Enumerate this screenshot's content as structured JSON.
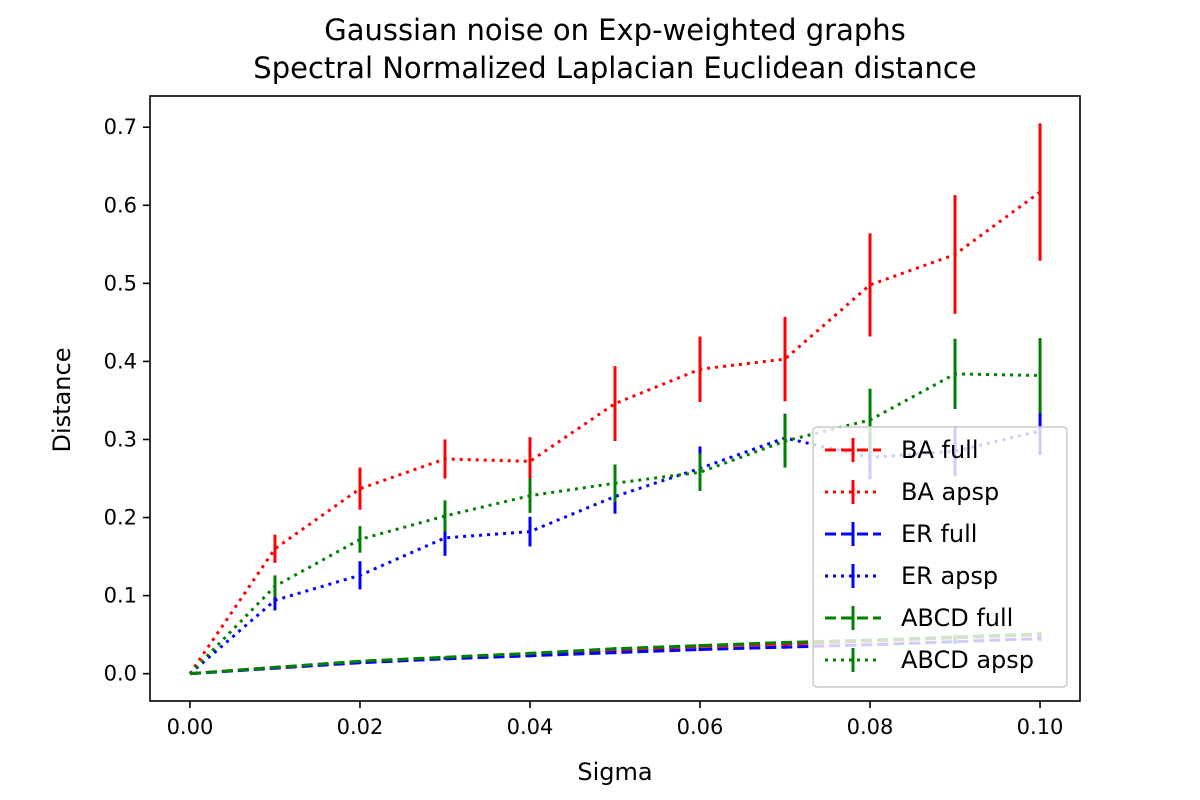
{
  "chart_data": {
    "type": "line",
    "title": "Gaussian noise on Exp-weighted graphs",
    "subtitle": "Spectral Normalized Laplacian Euclidean distance",
    "xlabel": "Sigma",
    "ylabel": "Distance",
    "xlim": [
      -0.0047,
      0.1047
    ],
    "ylim": [
      -0.035,
      0.74
    ],
    "xticks": [
      0.0,
      0.02,
      0.04,
      0.06,
      0.08,
      0.1
    ],
    "xtick_labels": [
      "0.00",
      "0.02",
      "0.04",
      "0.06",
      "0.08",
      "0.10"
    ],
    "yticks": [
      0.0,
      0.1,
      0.2,
      0.3,
      0.4,
      0.5,
      0.6,
      0.7
    ],
    "ytick_labels": [
      "0.0",
      "0.1",
      "0.2",
      "0.3",
      "0.4",
      "0.5",
      "0.6",
      "0.7"
    ],
    "grid": false,
    "legend_position": "lower-right",
    "x": [
      0.0,
      0.01,
      0.02,
      0.03,
      0.04,
      0.05,
      0.06,
      0.07,
      0.08,
      0.09,
      0.1
    ],
    "series": [
      {
        "name": "BA full",
        "color": "#ff0000",
        "linestyle": "dashed",
        "values": [
          0.0,
          0.008,
          0.015,
          0.02,
          0.025,
          0.03,
          0.035,
          0.038,
          0.042,
          0.046,
          0.05
        ],
        "errors": [
          0.0,
          0.001,
          0.001,
          0.001,
          0.002,
          0.002,
          0.002,
          0.002,
          0.002,
          0.003,
          0.003
        ]
      },
      {
        "name": "BA apsp",
        "color": "#ff0000",
        "linestyle": "dotted",
        "values": [
          0.0,
          0.16,
          0.237,
          0.275,
          0.272,
          0.346,
          0.39,
          0.403,
          0.498,
          0.537,
          0.617
        ],
        "errors": [
          0.0,
          0.018,
          0.027,
          0.025,
          0.031,
          0.048,
          0.042,
          0.054,
          0.066,
          0.076,
          0.088
        ]
      },
      {
        "name": "ER full",
        "color": "#0000ff",
        "linestyle": "dashed",
        "values": [
          0.0,
          0.007,
          0.014,
          0.019,
          0.023,
          0.027,
          0.031,
          0.034,
          0.037,
          0.041,
          0.045
        ],
        "errors": [
          0.0,
          0.001,
          0.001,
          0.001,
          0.002,
          0.002,
          0.002,
          0.002,
          0.002,
          0.003,
          0.003
        ]
      },
      {
        "name": "ER apsp",
        "color": "#0000ff",
        "linestyle": "dotted",
        "values": [
          0.0,
          0.094,
          0.126,
          0.174,
          0.182,
          0.227,
          0.263,
          0.302,
          0.277,
          0.285,
          0.311
        ],
        "errors": [
          0.0,
          0.013,
          0.018,
          0.023,
          0.019,
          0.022,
          0.028,
          0.031,
          0.028,
          0.032,
          0.031
        ]
      },
      {
        "name": "ABCD full",
        "color": "#008000",
        "linestyle": "dashed",
        "values": [
          0.0,
          0.008,
          0.016,
          0.021,
          0.026,
          0.032,
          0.036,
          0.04,
          0.043,
          0.047,
          0.051
        ],
        "errors": [
          0.0,
          0.001,
          0.001,
          0.001,
          0.002,
          0.002,
          0.002,
          0.002,
          0.002,
          0.003,
          0.003
        ]
      },
      {
        "name": "ABCD apsp",
        "color": "#008000",
        "linestyle": "dotted",
        "values": [
          0.0,
          0.112,
          0.172,
          0.202,
          0.228,
          0.244,
          0.258,
          0.298,
          0.325,
          0.384,
          0.382
        ],
        "errors": [
          0.0,
          0.014,
          0.017,
          0.02,
          0.022,
          0.024,
          0.024,
          0.034,
          0.04,
          0.045,
          0.048
        ]
      }
    ]
  }
}
